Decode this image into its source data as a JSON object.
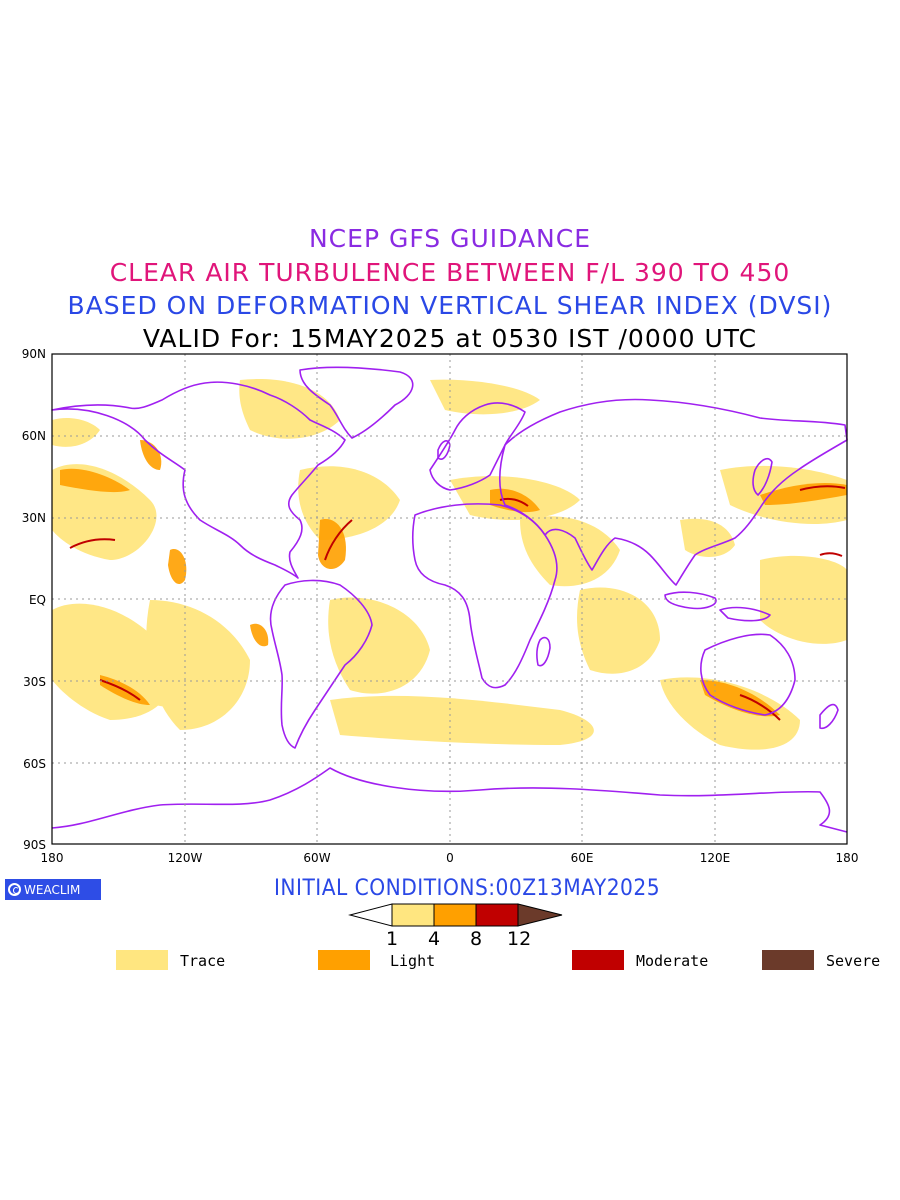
{
  "titles": {
    "line1": "NCEP GFS GUIDANCE",
    "line2": "CLEAR AIR TURBULENCE BETWEEN F/L 390 TO 450",
    "line3": "BASED ON DEFORMATION VERTICAL SHEAR INDEX (DVSI)",
    "line4": "VALID For: 15MAY2025 at 0530 IST /0000 UTC"
  },
  "map": {
    "lat_ticks": [
      "90N",
      "60N",
      "30N",
      "EQ",
      "30S",
      "60S",
      "90S"
    ],
    "lon_ticks": [
      "180",
      "120W",
      "60W",
      "0",
      "60E",
      "120E",
      "180"
    ],
    "colors": {
      "land_outline": "#a020f0",
      "trace": "#ffe680",
      "light": "#ffa000",
      "moderate": "#c00000",
      "severe": "#6b3a2a"
    }
  },
  "logo": {
    "text": "WEACLIM",
    "icon": "weaclim-logo-icon"
  },
  "initial_conditions": "INITIAL CONDITIONS:00Z13MAY2025",
  "colorbar": {
    "ticks": [
      "1",
      "4",
      "8",
      "12"
    ]
  },
  "legend": [
    {
      "label": "Trace",
      "color": "#ffe680"
    },
    {
      "label": "Light",
      "color": "#ffa000"
    },
    {
      "label": "Moderate",
      "color": "#c00000"
    },
    {
      "label": "Severe",
      "color": "#6b3a2a"
    }
  ]
}
